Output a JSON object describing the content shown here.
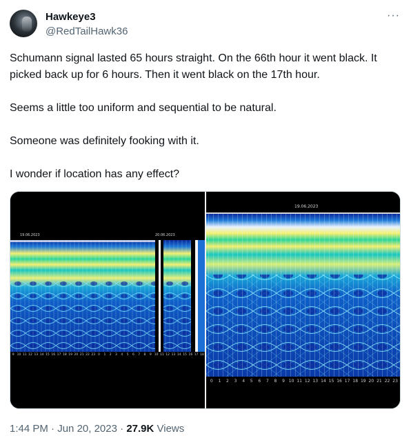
{
  "user": {
    "display_name": "Hawkeye3",
    "handle": "@RedTailHawk36"
  },
  "menu": {
    "more_label": "···"
  },
  "tweet": {
    "paragraphs": [
      "Schumann signal lasted 65 hours straight. On the 66th hour it went black. It picked back up for 6 hours. Then it went black on the 17th hour.",
      "Seems a little too uniform and sequential to be natural.",
      "Someone was definitely fooking with it.",
      "I wonder if location has any effect?"
    ]
  },
  "media": {
    "left": {
      "date_a": "19.06.2023",
      "date_b": "20.06.2023",
      "hours": [
        "9",
        "10",
        "11",
        "12",
        "13",
        "14",
        "15",
        "16",
        "17",
        "18",
        "19",
        "20",
        "21",
        "22",
        "23",
        "0",
        "1",
        "2",
        "3",
        "4",
        "5",
        "6",
        "7",
        "8",
        "9",
        "10",
        "11",
        "12",
        "13",
        "14",
        "15",
        "16",
        "17",
        "18"
      ]
    },
    "right": {
      "date": "19.06.2023",
      "hours": [
        "0",
        "1",
        "2",
        "3",
        "4",
        "5",
        "6",
        "7",
        "8",
        "9",
        "10",
        "11",
        "12",
        "13",
        "14",
        "15",
        "16",
        "17",
        "18",
        "19",
        "20",
        "21",
        "22",
        "23"
      ]
    }
  },
  "meta": {
    "time": "1:44 PM",
    "dot1": "·",
    "date": "Jun 20, 2023",
    "dot2": "·",
    "views_count": "27.9K",
    "views_label": "Views"
  },
  "colors": {
    "spectrogram_bg": "#0a2a9c",
    "spectrogram_band": "#18d7d0",
    "spectrogram_hot": "#f4f070"
  }
}
